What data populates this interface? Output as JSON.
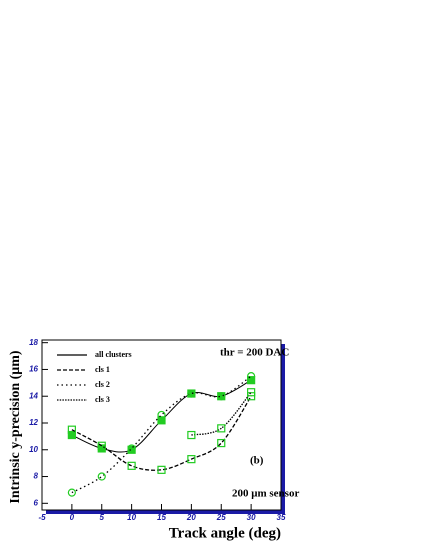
{
  "chart_data": {
    "type": "line",
    "x_label": "Track angle (deg)",
    "y_label": "Intrinsic y-precision  (μm)",
    "annotations": [
      "thr = 200 DAC",
      "(b)",
      "200 μm sensor"
    ],
    "x": [
      0,
      5,
      10,
      15,
      20,
      25,
      30
    ],
    "series": [
      {
        "name": "all clusters",
        "color": "#000000",
        "marker_color": "#22cc22",
        "line_style": "solid",
        "marker": "filled-square",
        "values": [
          11.1,
          10.1,
          10.0,
          12.2,
          14.2,
          14.0,
          15.2
        ]
      },
      {
        "name": "cls 1",
        "color": "#000000",
        "marker_color": "#22cc22",
        "line_style": "dashed",
        "marker": "open-square",
        "values": [
          11.5,
          10.3,
          8.8,
          8.5,
          9.3,
          10.5,
          14.0
        ]
      },
      {
        "name": "cls 2",
        "color": "#000000",
        "marker_color": "#22cc22",
        "line_style": "dotted",
        "marker": "open-circle",
        "values": [
          6.8,
          8.0,
          10.1,
          12.6,
          14.2,
          14.0,
          15.5
        ]
      },
      {
        "name": "cls 3",
        "color": "#000000",
        "marker_color": "#22cc22",
        "line_style": "dense-dotted",
        "marker": "open-square",
        "values": [
          null,
          null,
          null,
          null,
          11.1,
          11.6,
          14.3
        ]
      }
    ],
    "xlim": [
      -5,
      35
    ],
    "xticks": [
      -5,
      0,
      5,
      10,
      15,
      20,
      25,
      30,
      35
    ],
    "ylim": [
      5.5,
      18.2
    ],
    "yticks": [
      6,
      8,
      10,
      12,
      14,
      16,
      18
    ],
    "frame_shadow_color": "#1a1aa6",
    "tick_label_color": "#1a1aa6"
  }
}
